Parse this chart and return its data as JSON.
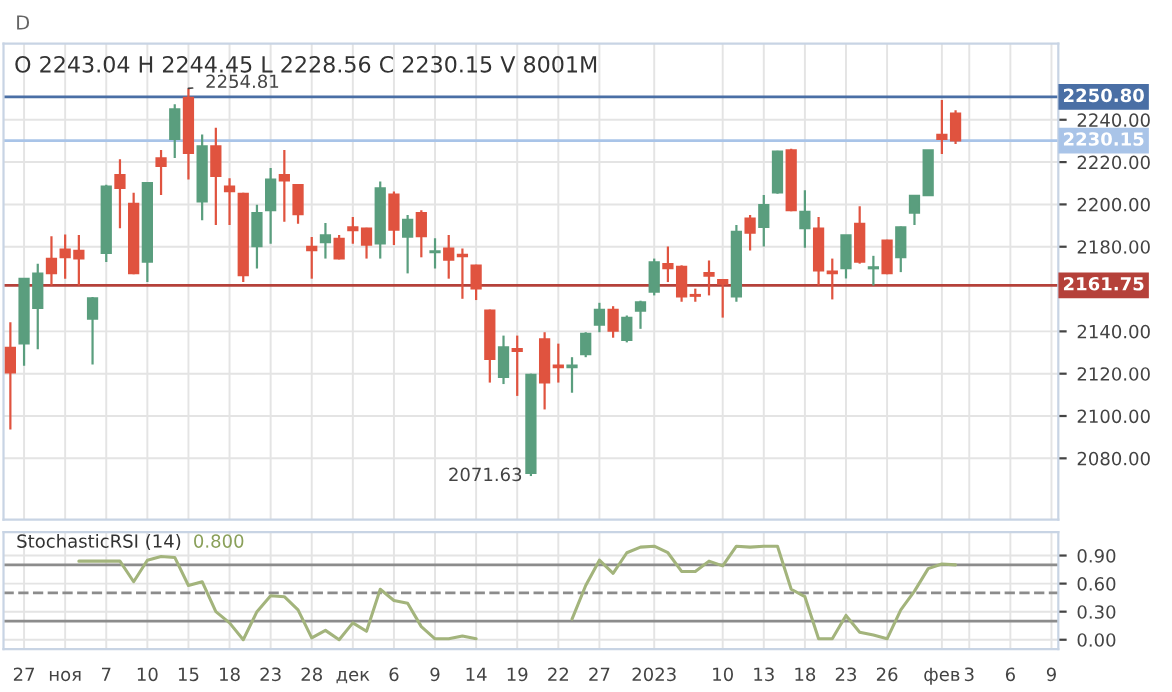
{
  "chart_data": [
    {
      "type": "candlestick",
      "title": "D",
      "subtitle": "O 2243.04 H 2244.45 L 2228.56 C 2230.15 V 8001M",
      "categories": [
        null,
        null,
        null,
        null,
        null,
        null,
        null,
        null,
        null,
        null,
        null,
        null,
        null,
        null,
        null,
        null,
        null,
        null,
        null,
        null,
        null,
        null,
        null,
        null,
        null,
        null,
        null,
        null,
        null,
        null,
        null,
        null,
        null,
        null,
        null,
        null,
        null,
        null,
        null,
        null,
        null,
        null,
        null,
        null,
        null,
        null,
        null,
        null,
        null,
        null,
        null,
        null,
        null,
        null,
        null,
        null,
        null,
        null,
        null,
        null,
        null,
        null,
        null,
        null,
        null,
        null,
        null,
        null,
        null,
        null,
        null,
        null,
        null,
        null,
        null,
        null,
        null
      ],
      "ohlc": [
        [
          2132.3,
          2144.3,
          2093.6,
          2120.5
        ],
        [
          2134.2,
          2165.0,
          2123.7,
          2164.9
        ],
        [
          2151.0,
          2171.9,
          2131.6,
          2167.4
        ],
        [
          2174.4,
          2184.9,
          2161.7,
          2167.4
        ],
        [
          2178.8,
          2185.8,
          2164.9,
          2175.0
        ],
        [
          2178.2,
          2185.5,
          2161.7,
          2174.4
        ],
        [
          2145.9,
          2156.2,
          2124.3,
          2155.7
        ],
        [
          2176.9,
          2209.3,
          2172.8,
          2208.6
        ],
        [
          2214.0,
          2221.3,
          2188.7,
          2207.7
        ],
        [
          2200.4,
          2205.5,
          2167.0,
          2167.4
        ],
        [
          2172.8,
          2210.5,
          2163.3,
          2210.2
        ],
        [
          2221.9,
          2225.7,
          2204.5,
          2218.1
        ],
        [
          2230.8,
          2247.3,
          2221.9,
          2245.1
        ],
        [
          2250.5,
          2254.81,
          2211.8,
          2224.2
        ],
        [
          2201.3,
          2233.0,
          2192.5,
          2227.6
        ],
        [
          2227.6,
          2236.2,
          2190.3,
          2213.4
        ],
        [
          2208.6,
          2212.4,
          2190.3,
          2206.1
        ],
        [
          2205.1,
          2205.5,
          2163.3,
          2166.5
        ],
        [
          2180.1,
          2199.8,
          2169.7,
          2196.0
        ],
        [
          2197.2,
          2217.2,
          2181.4,
          2211.8
        ],
        [
          2214.0,
          2225.7,
          2191.8,
          2211.2
        ],
        [
          2209.3,
          2209.6,
          2190.9,
          2195.3
        ],
        [
          2180.1,
          2184.6,
          2164.9,
          2178.2
        ],
        [
          2182.0,
          2191.2,
          2174.4,
          2185.5
        ],
        [
          2183.9,
          2185.5,
          2174.0,
          2174.4
        ],
        [
          2189.3,
          2194.1,
          2181.4,
          2187.7
        ],
        [
          2188.7,
          2189.0,
          2174.4,
          2180.8
        ],
        [
          2181.4,
          2210.8,
          2174.4,
          2207.7
        ],
        [
          2204.8,
          2206.1,
          2180.8,
          2188.0
        ],
        [
          2184.6,
          2195.0,
          2167.4,
          2192.8
        ],
        [
          2196.0,
          2197.2,
          2175.0,
          2184.9
        ],
        [
          2177.3,
          2184.0,
          2169.7,
          2177.9
        ],
        [
          2179.2,
          2185.5,
          2164.9,
          2173.8
        ],
        [
          2176.3,
          2179.2,
          2155.4,
          2175.4
        ],
        [
          2171.2,
          2171.5,
          2154.8,
          2160.2
        ],
        [
          2150.0,
          2150.3,
          2115.8,
          2126.9
        ],
        [
          2118.3,
          2138.0,
          2115.1,
          2132.6
        ],
        [
          2131.8,
          2138.0,
          2109.5,
          2130.6
        ],
        [
          2073.0,
          2120.0,
          2071.63,
          2119.6
        ],
        [
          2136.4,
          2139.6,
          2103.1,
          2115.8
        ],
        [
          2124.0,
          2134.2,
          2115.8,
          2123.0
        ],
        [
          2123.0,
          2127.8,
          2111.0,
          2124.0
        ],
        [
          2129.1,
          2139.6,
          2127.8,
          2138.9
        ],
        [
          2143.1,
          2153.5,
          2139.6,
          2150.3
        ],
        [
          2150.3,
          2151.9,
          2137.0,
          2140.2
        ],
        [
          2135.8,
          2147.5,
          2134.8,
          2146.5
        ],
        [
          2149.7,
          2154.5,
          2141.2,
          2153.8
        ],
        [
          2158.6,
          2174.4,
          2157.0,
          2172.8
        ],
        [
          2171.9,
          2180.1,
          2163.3,
          2169.7
        ],
        [
          2170.6,
          2171.2,
          2154.0,
          2156.4
        ],
        [
          2157.3,
          2160.2,
          2154.0,
          2156.7
        ],
        [
          2167.7,
          2173.5,
          2157.0,
          2166.2
        ],
        [
          2164.3,
          2164.6,
          2146.5,
          2162.4
        ],
        [
          2156.4,
          2190.3,
          2154.0,
          2187.1
        ],
        [
          2193.4,
          2195.0,
          2178.2,
          2186.5
        ],
        [
          2189.3,
          2204.5,
          2180.1,
          2199.8
        ],
        [
          2205.5,
          2225.4,
          2205.0,
          2225.1
        ],
        [
          2225.7,
          2226.3,
          2196.8,
          2197.2
        ],
        [
          2188.7,
          2206.7,
          2179.5,
          2196.6
        ],
        [
          2188.7,
          2194.1,
          2161.7,
          2168.7
        ],
        [
          2168.4,
          2174.4,
          2155.1,
          2167.4
        ],
        [
          2169.7,
          2185.5,
          2165.0,
          2185.5
        ],
        [
          2190.9,
          2199.1,
          2172.0,
          2172.8
        ],
        [
          2169.7,
          2175.7,
          2161.7,
          2170.4
        ],
        [
          2183.0,
          2183.3,
          2167.0,
          2167.4
        ],
        [
          2175.0,
          2189.6,
          2168.0,
          2189.3
        ],
        [
          2196.0,
          2204.2,
          2190.3,
          2204.2
        ],
        [
          2204.2,
          2225.7,
          2204.0,
          2225.7
        ],
        [
          2233.0,
          2249.3,
          2223.8,
          2230.8
        ],
        [
          2243.04,
          2244.45,
          2228.56,
          2230.15
        ],
        null,
        null,
        null,
        null,
        null,
        null,
        null
      ],
      "colors": [
        "#e0533f",
        "#5a9e7e",
        "#5a9e7e",
        "#e0533f",
        "#e0533f",
        "#e0533f",
        "#5a9e7e",
        "#5a9e7e",
        "#e0533f",
        "#e0533f",
        "#5a9e7e",
        "#e0533f",
        "#5a9e7e",
        "#e0533f",
        "#5a9e7e",
        "#e0533f",
        "#e0533f",
        "#e0533f",
        "#5a9e7e",
        "#5a9e7e",
        "#e0533f",
        "#e0533f",
        "#e0533f",
        "#5a9e7e",
        "#e0533f",
        "#e0533f",
        "#e0533f",
        "#5a9e7e",
        "#e0533f",
        "#5a9e7e",
        "#e0533f",
        "#5a9e7e",
        "#e0533f",
        "#e0533f",
        "#e0533f",
        "#e0533f",
        "#5a9e7e",
        "#e0533f",
        "#5a9e7e",
        "#e0533f",
        "#e0533f",
        "#5a9e7e",
        "#5a9e7e",
        "#5a9e7e",
        "#e0533f",
        "#5a9e7e",
        "#5a9e7e",
        "#5a9e7e",
        "#e0533f",
        "#e0533f",
        "#e0533f",
        "#e0533f",
        "#e0533f",
        "#5a9e7e",
        "#e0533f",
        "#5a9e7e",
        "#5a9e7e",
        "#e0533f",
        "#5a9e7e",
        "#e0533f",
        "#e0533f",
        "#5a9e7e",
        "#e0533f",
        "#5a9e7e",
        "#e0533f",
        "#5a9e7e",
        "#5a9e7e",
        "#5a9e7e",
        "#e0533f",
        "#e0533f",
        null,
        null,
        null,
        null,
        null,
        null,
        null
      ],
      "ylim": [
        2051,
        2276
      ],
      "yticks": [
        {
          "value": 2080,
          "label": "2080.00"
        },
        {
          "value": 2100,
          "label": "2100.00"
        },
        {
          "value": 2120,
          "label": "2120.00"
        },
        {
          "value": 2140,
          "label": "2140.00"
        },
        {
          "value": 2180,
          "label": "2180.00"
        },
        {
          "value": 2200,
          "label": "2200.00"
        },
        {
          "value": 2220,
          "label": "2220.00"
        },
        {
          "value": 2240,
          "label": "2240.00"
        }
      ],
      "ref_lines": [
        {
          "axis": "y",
          "value": 2250.8,
          "label": "2250.80",
          "color": "#4a6fa5"
        },
        {
          "axis": "y",
          "value": 2230.15,
          "label": "2230.15",
          "color": "#a9c4e8"
        },
        {
          "axis": "y",
          "value": 2161.75,
          "label": "2161.75",
          "color": "#b5413a"
        }
      ],
      "annotations": [
        {
          "text": "2254.81",
          "y": 2254.81
        },
        "2071.63"
      ],
      "grid": true,
      "tick_labels": "y"
    },
    {
      "type": "line",
      "title": "StochasticRSI (14)",
      "annotations": [
        "0.800"
      ],
      "categories": [
        null,
        "27",
        null,
        null,
        "ноя",
        null,
        null,
        "7",
        null,
        null,
        "10",
        null,
        null,
        "15",
        null,
        null,
        "18",
        null,
        null,
        "23",
        null,
        null,
        "28",
        null,
        null,
        "дек",
        null,
        null,
        "6",
        null,
        null,
        "9",
        null,
        null,
        "14",
        null,
        null,
        "19",
        null,
        null,
        "22",
        null,
        null,
        "27",
        null,
        null,
        null,
        "2023",
        null,
        null,
        null,
        null,
        "10",
        null,
        null,
        "13",
        null,
        null,
        "18",
        null,
        null,
        "23",
        null,
        null,
        "26",
        null,
        null,
        null,
        "фев",
        null,
        "3",
        null,
        null,
        "6",
        null,
        null,
        "9"
      ],
      "series": [
        {
          "color": "#a3b47c",
          "values": [
            null,
            null,
            null,
            null,
            null,
            0.84,
            0.84,
            0.84,
            0.84,
            0.62,
            0.85,
            0.89,
            0.88,
            0.58,
            0.62,
            0.3,
            0.18,
            0.0,
            0.3,
            0.47,
            0.46,
            0.32,
            0.02,
            0.1,
            0.0,
            0.18,
            0.09,
            0.54,
            0.42,
            0.39,
            0.14,
            0.01,
            0.01,
            0.04,
            0.01,
            null,
            null,
            null,
            null,
            null,
            null,
            0.22,
            0.58,
            0.85,
            0.71,
            0.93,
            0.99,
            1.0,
            0.93,
            0.73,
            0.73,
            0.84,
            0.79,
            1.0,
            0.99,
            1.0,
            1.0,
            0.54,
            0.46,
            0.01,
            0.01,
            0.26,
            0.08,
            0.05,
            0.01,
            0.32,
            0.52,
            0.76,
            0.81,
            0.8,
            null,
            null,
            null,
            null,
            null,
            null,
            null
          ]
        }
      ],
      "ylim": [
        -0.1,
        1.15
      ],
      "yticks": [
        {
          "value": 0,
          "label": "0.00"
        },
        {
          "value": 0.3,
          "label": "0.30"
        },
        {
          "value": 0.6,
          "label": "0.60"
        },
        {
          "value": 0.9,
          "label": "0.90"
        }
      ],
      "ref_lines": [
        {
          "axis": "y",
          "value": 0.8,
          "color": "#8c8c8c",
          "line_style": "solid"
        },
        {
          "axis": "y",
          "value": 0.5,
          "color": "#8c8c8c",
          "line_style": "dashed"
        },
        {
          "axis": "y",
          "value": 0.2,
          "color": "#8c8c8c",
          "line_style": "solid"
        }
      ],
      "grid": true
    }
  ]
}
